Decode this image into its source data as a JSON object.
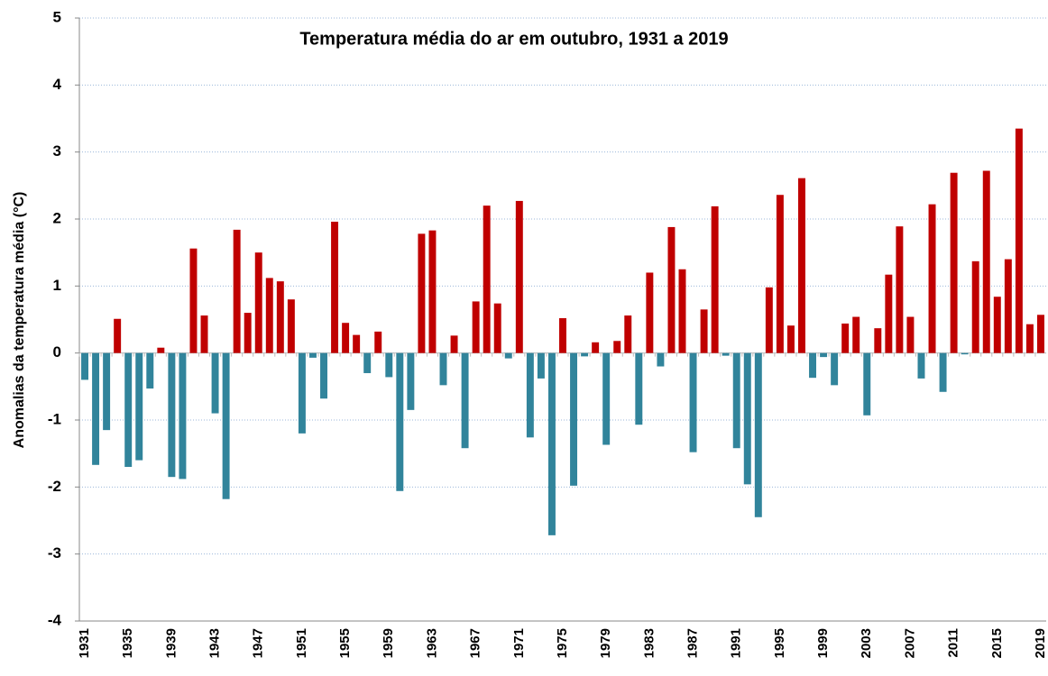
{
  "chart_data": {
    "type": "bar",
    "title": "Temperatura média do ar em outubro, 1931 a 2019",
    "y_label": "Anomalias da temperatura média (°C)",
    "categories": [
      "1931",
      null,
      null,
      null,
      "1935",
      null,
      null,
      null,
      "1939",
      null,
      null,
      null,
      "1943",
      null,
      null,
      null,
      "1947",
      null,
      null,
      null,
      "1951",
      null,
      null,
      null,
      "1955",
      null,
      null,
      null,
      "1959",
      null,
      null,
      null,
      "1963",
      null,
      null,
      null,
      "1967",
      null,
      null,
      null,
      "1971",
      null,
      null,
      null,
      "1975",
      null,
      null,
      null,
      "1979",
      null,
      null,
      null,
      "1983",
      null,
      null,
      null,
      "1987",
      null,
      null,
      null,
      "1991",
      null,
      null,
      null,
      "1995",
      null,
      null,
      null,
      "1999",
      null,
      null,
      null,
      "2003",
      null,
      null,
      null,
      "2007",
      null,
      null,
      null,
      "2011",
      null,
      null,
      null,
      "2015",
      null,
      null,
      null,
      "2019"
    ],
    "values": [
      -0.4,
      -1.67,
      -1.15,
      0.51,
      -1.7,
      -1.6,
      -0.53,
      0.08,
      -1.85,
      -1.88,
      1.56,
      0.56,
      -0.9,
      -2.18,
      1.84,
      0.6,
      1.5,
      1.12,
      1.07,
      0.8,
      -1.2,
      -0.07,
      -0.68,
      1.96,
      0.45,
      0.27,
      -0.3,
      0.32,
      -0.36,
      -2.06,
      -0.85,
      1.78,
      1.83,
      -0.48,
      0.26,
      -1.42,
      0.77,
      2.2,
      0.74,
      -0.08,
      2.27,
      -1.26,
      -0.38,
      -2.72,
      0.52,
      -1.98,
      -0.05,
      0.16,
      -1.37,
      0.18,
      0.56,
      -1.07,
      1.2,
      -0.2,
      1.88,
      1.25,
      -1.48,
      0.65,
      2.19,
      -0.04,
      -1.42,
      -1.96,
      -2.45,
      0.98,
      2.36,
      0.41,
      2.61,
      -0.37,
      -0.06,
      -0.48,
      0.44,
      0.54,
      -0.93,
      0.37,
      1.17,
      1.89,
      0.54,
      -0.38,
      2.22,
      -0.58,
      2.69,
      -0.02,
      1.37,
      2.72,
      0.84,
      1.4,
      3.35,
      0.43,
      0.57
    ],
    "positive_color": "#c00000",
    "negative_color": "#31849b",
    "ylim": [
      -4,
      5
    ],
    "yticks": [
      -4,
      -3,
      -2,
      -1,
      0,
      1,
      2,
      3,
      4,
      5
    ],
    "grid": true
  }
}
